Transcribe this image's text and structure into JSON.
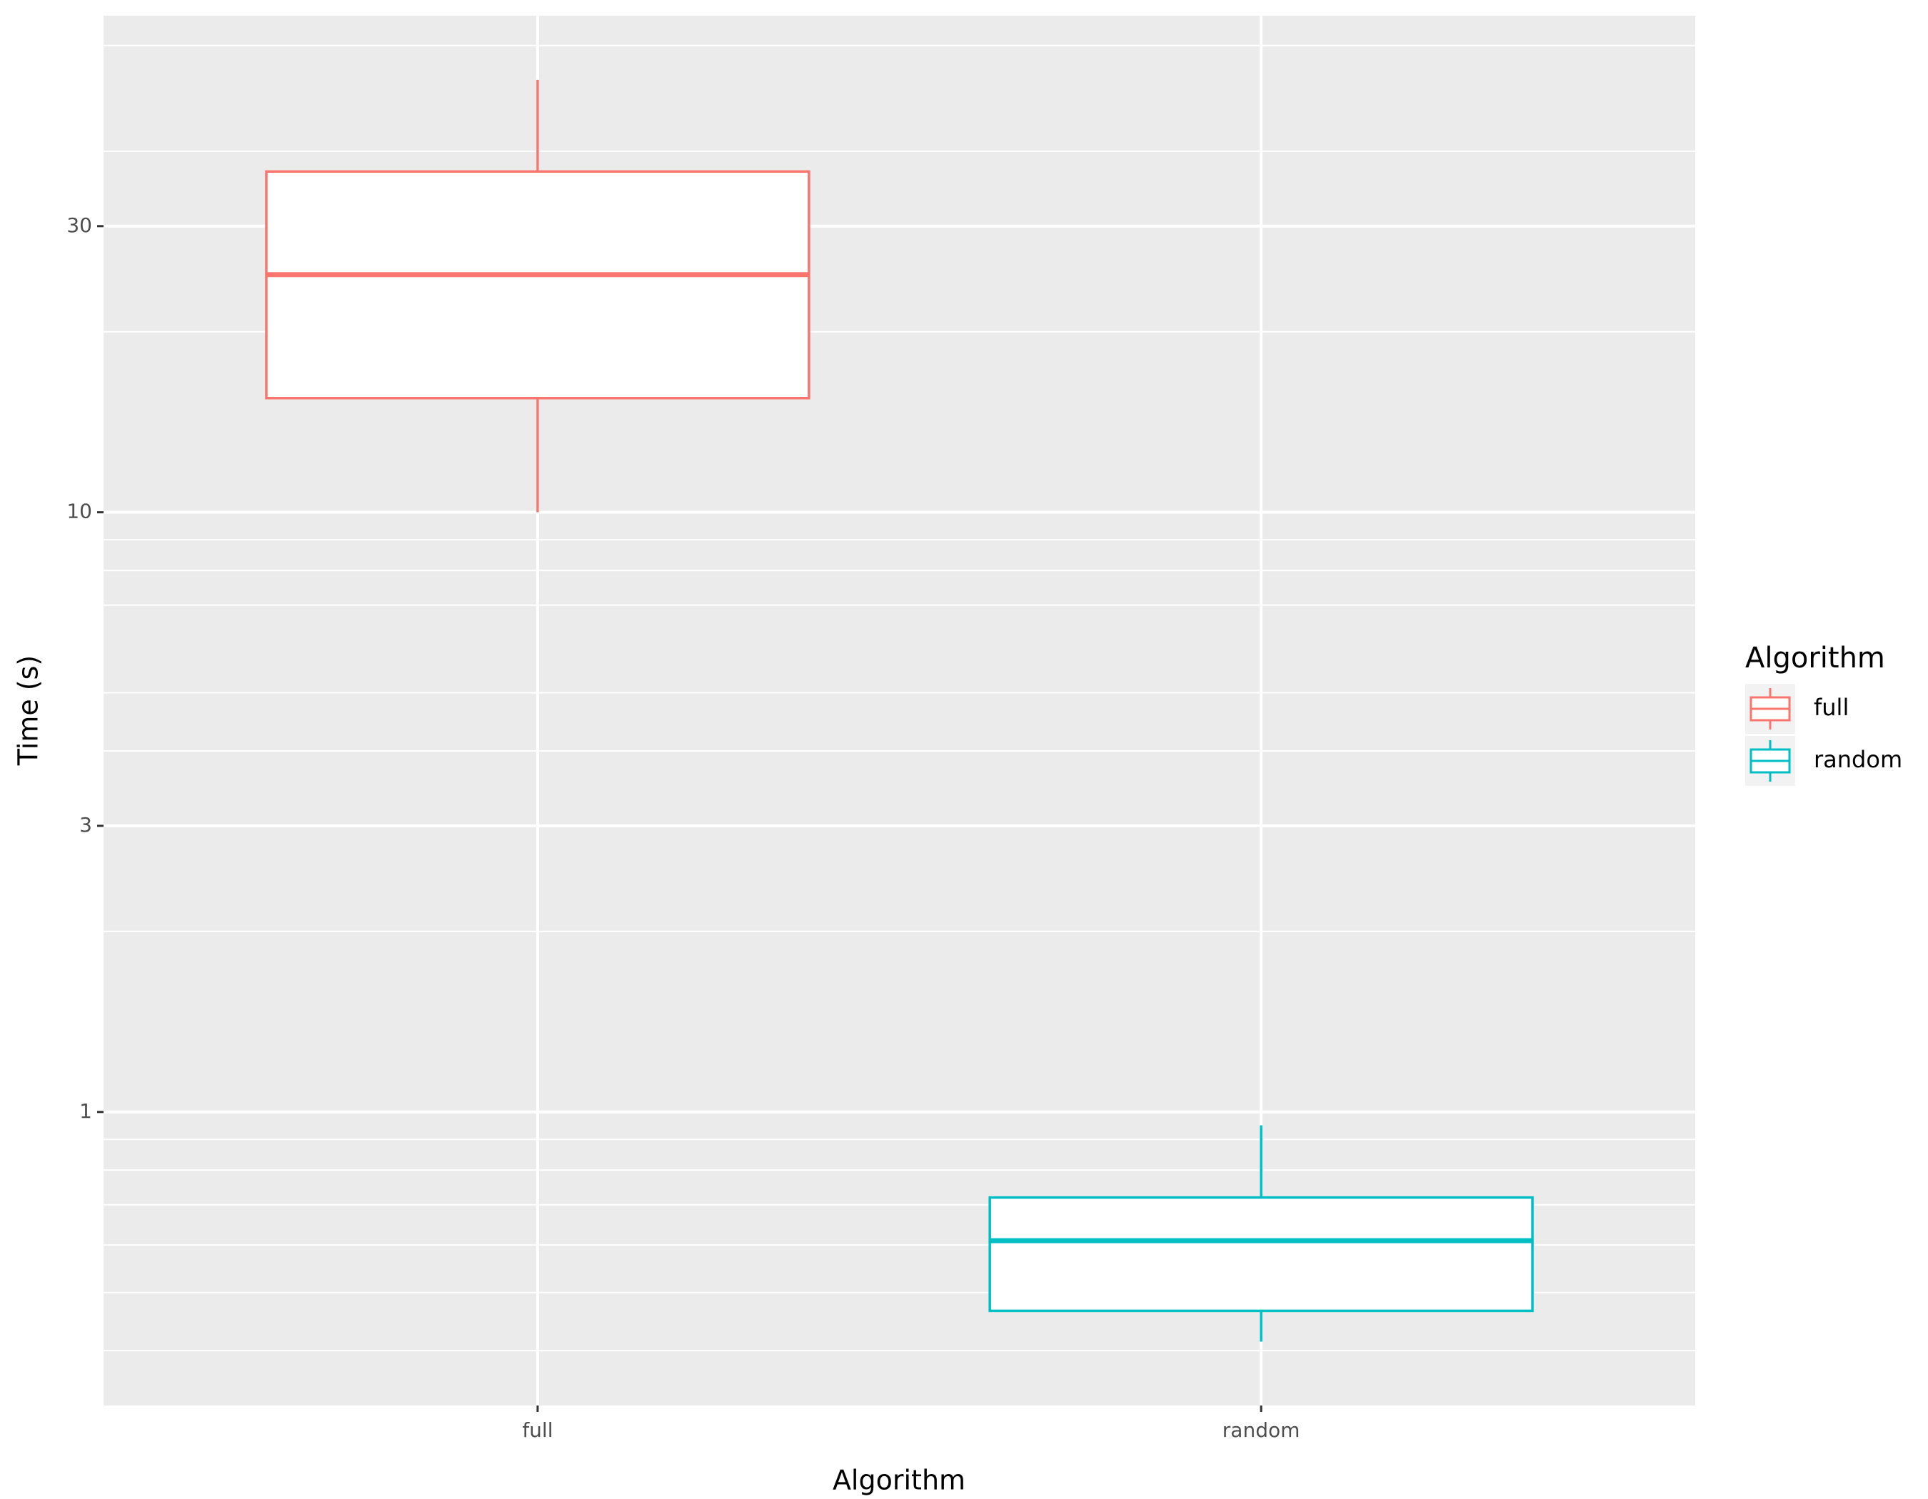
{
  "chart_data": {
    "type": "box",
    "x_label": "Algorithm",
    "y_label": "Time (s)",
    "categories": [
      "full",
      "random"
    ],
    "series": [
      {
        "name": "full",
        "color": "#f8766d",
        "min": 10,
        "q1": 15.5,
        "median": 24.9,
        "q3": 37,
        "max": 52.6
      },
      {
        "name": "random",
        "color": "#00bfc4",
        "min": 0.414,
        "q1": 0.466,
        "median": 0.61,
        "q3": 0.72,
        "max": 0.95
      }
    ],
    "log_y": true,
    "ylim": [
      0.324,
      67.3
    ],
    "yticks": [
      1,
      3,
      10,
      30
    ],
    "y_minor_grid": [
      0.4,
      0.5,
      0.6,
      0.7,
      0.8,
      0.9,
      2,
      4,
      5,
      7,
      8,
      9,
      20,
      40,
      60
    ],
    "grid": true,
    "legend_title": "Algorithm",
    "legend_position": "right"
  }
}
